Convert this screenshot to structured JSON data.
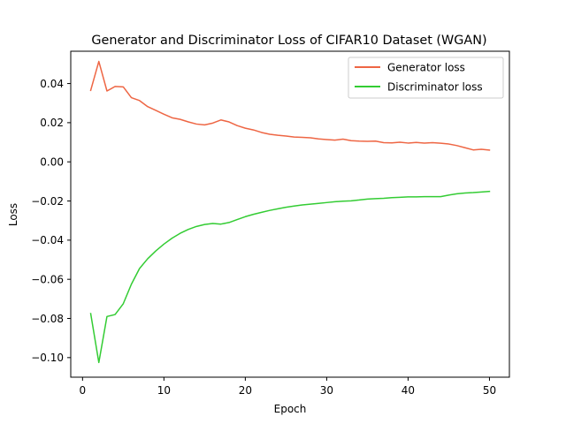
{
  "chart_data": {
    "type": "line",
    "title": "Generator and Discriminator Loss of CIFAR10 Dataset (WGAN)",
    "xlabel": "Epoch",
    "ylabel": "Loss",
    "xlim": [
      -1.45,
      52.45
    ],
    "ylim": [
      -0.11,
      0.0565
    ],
    "x_ticks": [
      0,
      10,
      20,
      30,
      40,
      50
    ],
    "x_tick_labels": [
      "0",
      "10",
      "20",
      "30",
      "40",
      "50"
    ],
    "y_ticks": [
      0.04,
      0.02,
      0.0,
      -0.02,
      -0.04,
      -0.06,
      -0.08,
      -0.1
    ],
    "y_tick_labels": [
      "0.04",
      "0.02",
      "0.00",
      "−0.02",
      "−0.04",
      "−0.06",
      "−0.08",
      "−0.10"
    ],
    "grid": false,
    "legend_position": "top-right",
    "x": [
      1,
      2,
      3,
      4,
      5,
      6,
      7,
      8,
      9,
      10,
      11,
      12,
      13,
      14,
      15,
      16,
      17,
      18,
      19,
      20,
      21,
      22,
      23,
      24,
      25,
      26,
      27,
      28,
      29,
      30,
      31,
      32,
      33,
      34,
      35,
      36,
      37,
      38,
      39,
      40,
      41,
      42,
      43,
      44,
      45,
      46,
      47,
      48,
      49,
      50
    ],
    "series": [
      {
        "name": "Generator loss",
        "color": "#ee6644",
        "values": [
          0.0365,
          0.0513,
          0.0362,
          0.0385,
          0.0383,
          0.0328,
          0.0313,
          0.0282,
          0.0263,
          0.0243,
          0.0225,
          0.0217,
          0.0204,
          0.0193,
          0.0189,
          0.0198,
          0.0214,
          0.0204,
          0.0185,
          0.0172,
          0.0163,
          0.015,
          0.0141,
          0.0136,
          0.0132,
          0.0127,
          0.0125,
          0.0123,
          0.0117,
          0.0114,
          0.0111,
          0.0116,
          0.0108,
          0.0106,
          0.0105,
          0.0106,
          0.0098,
          0.0097,
          0.01,
          0.0096,
          0.0099,
          0.0096,
          0.0098,
          0.0095,
          0.0091,
          0.0083,
          0.0072,
          0.0061,
          0.0064,
          0.006
        ]
      },
      {
        "name": "Discriminator loss",
        "color": "#33cc33",
        "values": [
          -0.0775,
          -0.1025,
          -0.079,
          -0.078,
          -0.0725,
          -0.0625,
          -0.0545,
          -0.0495,
          -0.0455,
          -0.042,
          -0.039,
          -0.0365,
          -0.0345,
          -0.033,
          -0.032,
          -0.0315,
          -0.0318,
          -0.031,
          -0.0295,
          -0.028,
          -0.0268,
          -0.0258,
          -0.0248,
          -0.024,
          -0.0232,
          -0.0226,
          -0.022,
          -0.0216,
          -0.0212,
          -0.0208,
          -0.0204,
          -0.0201,
          -0.0199,
          -0.0195,
          -0.019,
          -0.0188,
          -0.0186,
          -0.0183,
          -0.0181,
          -0.0179,
          -0.0179,
          -0.0178,
          -0.0178,
          -0.0178,
          -0.017,
          -0.0163,
          -0.0159,
          -0.0157,
          -0.0154,
          -0.0151
        ]
      }
    ]
  }
}
